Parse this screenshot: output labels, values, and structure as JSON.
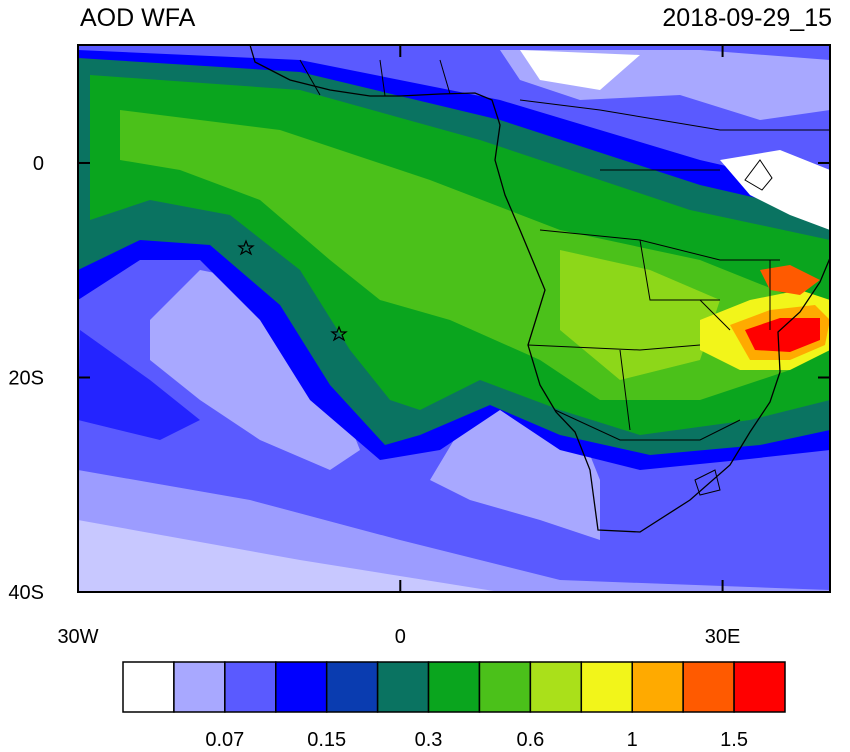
{
  "map_data": {
    "title": "AOD WFA",
    "date": "2018-09-29_15",
    "xlim": [
      -30,
      40
    ],
    "ylim": [
      -40,
      11
    ],
    "xticks": [
      {
        "value": -30,
        "label": "30W"
      },
      0,
      {
        "value": 30,
        "label": "30E"
      }
    ],
    "yticks": [
      0,
      {
        "value": -20,
        "label": "20S"
      },
      {
        "value": -40,
        "label": "40S"
      }
    ],
    "colorbar": {
      "colors": [
        "#ffffff",
        "#a8a8ff",
        "#5a5aff",
        "#0000ff",
        "#0a3cb0",
        "#0a7361",
        "#0aa51e",
        "#4bc11a",
        "#aae01a",
        "#f2f51a",
        "#ffaa00",
        "#ff5a00",
        "#ff0000"
      ],
      "labels": [
        "0.07",
        "0.15",
        "0.3",
        "0.6",
        "1",
        "1.5"
      ]
    }
  }
}
